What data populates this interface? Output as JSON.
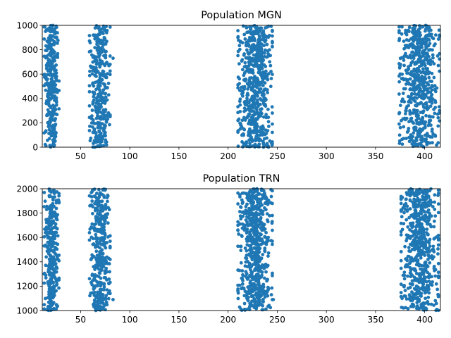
{
  "chart_data": [
    {
      "type": "scatter",
      "title": "Population MGN",
      "xlabel": "",
      "ylabel": "",
      "xlim": [
        11,
        416
      ],
      "ylim": [
        0,
        1000
      ],
      "x_ticks": [
        50,
        100,
        150,
        200,
        250,
        300,
        350,
        400
      ],
      "y_ticks": [
        0,
        200,
        400,
        600,
        800,
        1000
      ],
      "grid": false,
      "color": "#1f77b4",
      "bursts": [
        {
          "x_range": [
            13,
            28
          ],
          "y_range": [
            0,
            1000
          ],
          "density": "high"
        },
        {
          "x_range": [
            59,
            80
          ],
          "y_range": [
            0,
            1000
          ],
          "density": "high"
        },
        {
          "x_range": [
            210,
            245
          ],
          "y_range": [
            0,
            1000
          ],
          "density": "high"
        },
        {
          "x_range": [
            374,
            415
          ],
          "y_range": [
            0,
            1000
          ],
          "density": "high"
        }
      ],
      "outliers": [
        {
          "x": 83,
          "y": 730
        },
        {
          "x": 245,
          "y": 280
        },
        {
          "x": 374,
          "y": 190
        },
        {
          "x": 375,
          "y": 600
        },
        {
          "x": 415,
          "y": 280
        }
      ]
    },
    {
      "type": "scatter",
      "title": "Population TRN",
      "xlabel": "",
      "ylabel": "",
      "xlim": [
        11,
        416
      ],
      "ylim": [
        1000,
        2000
      ],
      "x_ticks": [
        50,
        100,
        150,
        200,
        250,
        300,
        350,
        400
      ],
      "y_ticks": [
        1000,
        1200,
        1400,
        1600,
        1800,
        2000
      ],
      "grid": false,
      "color": "#1f77b4",
      "bursts": [
        {
          "x_range": [
            13,
            28
          ],
          "y_range": [
            1000,
            2000
          ],
          "density": "high"
        },
        {
          "x_range": [
            59,
            80
          ],
          "y_range": [
            1000,
            2000
          ],
          "density": "high"
        },
        {
          "x_range": [
            210,
            245
          ],
          "y_range": [
            1000,
            2000
          ],
          "density": "high"
        },
        {
          "x_range": [
            376,
            414
          ],
          "y_range": [
            1000,
            2000
          ],
          "density": "high"
        }
      ],
      "outliers": [
        {
          "x": 83,
          "y": 1090
        },
        {
          "x": 246,
          "y": 1090
        },
        {
          "x": 245,
          "y": 1780
        },
        {
          "x": 377,
          "y": 1100
        },
        {
          "x": 414,
          "y": 1580
        }
      ]
    }
  ]
}
